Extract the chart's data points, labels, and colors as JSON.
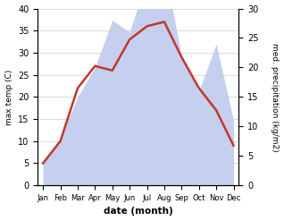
{
  "months": [
    "Jan",
    "Feb",
    "Mar",
    "Apr",
    "May",
    "Jun",
    "Jul",
    "Aug",
    "Sep",
    "Oct",
    "Nov",
    "Dec"
  ],
  "temperature": [
    5,
    10,
    22,
    27,
    26,
    33,
    36,
    37,
    29,
    22,
    17,
    9
  ],
  "precipitation": [
    4,
    8,
    15,
    20,
    28,
    26,
    35,
    37,
    22,
    16,
    24,
    11
  ],
  "temp_color": "#c0392b",
  "precip_fill_color": "#c5cff0",
  "temp_ylim": [
    0,
    40
  ],
  "precip_ylim": [
    0,
    30
  ],
  "xlabel": "date (month)",
  "ylabel_left": "max temp (C)",
  "ylabel_right": "med. precipitation (kg/m2)"
}
